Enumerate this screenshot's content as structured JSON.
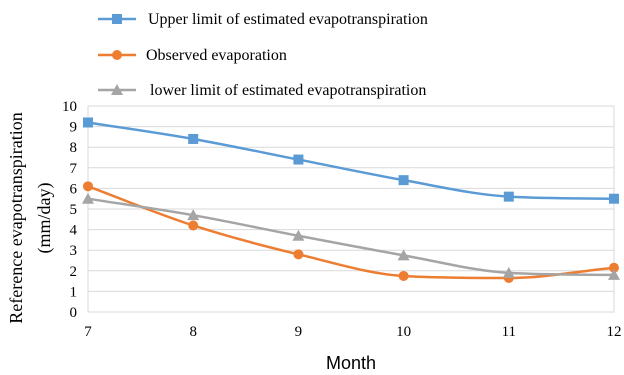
{
  "chart_data": {
    "type": "line",
    "title": "",
    "xlabel": "Month",
    "ylabel_line1": "Reference evapotranspiration",
    "ylabel_line2": "(mm/day)",
    "x": [
      7,
      8,
      9,
      10,
      11,
      12
    ],
    "xtick_labels": [
      "7",
      "8",
      "9",
      "10",
      "11",
      "12"
    ],
    "ylim": [
      0,
      10
    ],
    "yticks": [
      0,
      1,
      2,
      3,
      4,
      5,
      6,
      7,
      8,
      9,
      10
    ],
    "grid": true,
    "legend_position": "top",
    "series": [
      {
        "name": "Upper limit of estimated evapotranspiration",
        "color": "#5b9bd5",
        "marker": "square",
        "values": [
          9.2,
          8.4,
          7.4,
          6.4,
          5.6,
          5.5
        ]
      },
      {
        "name": "Observed evaporation",
        "color": "#ed7d31",
        "marker": "circle",
        "values": [
          6.1,
          4.2,
          2.8,
          1.75,
          1.65,
          2.15
        ]
      },
      {
        "name": "lower limit of estimated evapotranspiration",
        "color": "#a5a5a5",
        "marker": "triangle",
        "values": [
          5.5,
          4.7,
          3.7,
          2.75,
          1.9,
          1.8
        ]
      }
    ]
  }
}
